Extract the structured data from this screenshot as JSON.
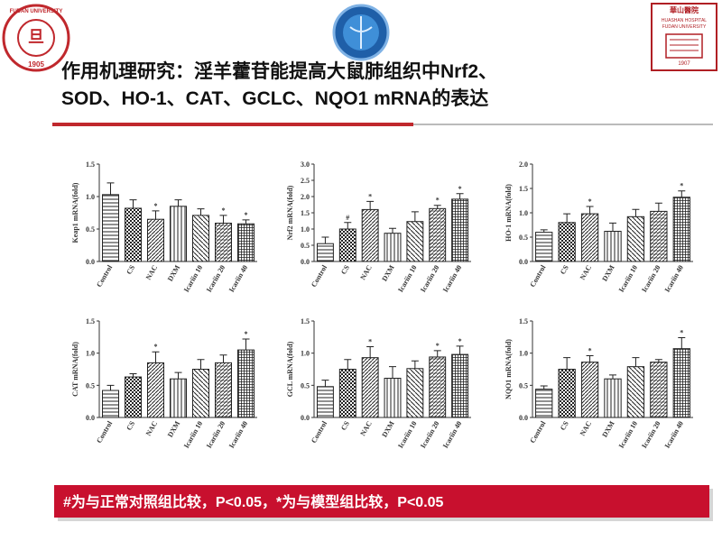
{
  "header": {
    "title_line1": "作用机理研究：淫羊藿苷能提高大鼠肺组织中Nrf2、",
    "title_line2": "SOD、HO-1、CAT、GCLC、NQO1 mRNA的表达"
  },
  "logos": {
    "left_name": "FUDAN UNIVERSITY",
    "left_year": "1905",
    "right_name_cn": "華山醫院",
    "right_name_en": "HUASHAN HOSPITAL",
    "right_univ": "FUDAN UNIVERSITY",
    "right_year": "1907"
  },
  "footnote": "#为与正常对照组比较，P<0.05，*为与模型组比较，P<0.05",
  "chart_data": [
    {
      "type": "bar",
      "y_label": "Keap1 mRNA(fold)",
      "categories": [
        "Control",
        "CS",
        "NAC",
        "DXM",
        "Icariin 10",
        "Icariin 20",
        "Icariin 40"
      ],
      "values": [
        1.03,
        0.82,
        0.65,
        0.85,
        0.71,
        0.59,
        0.58
      ],
      "errors": [
        0.18,
        0.13,
        0.13,
        0.1,
        0.1,
        0.12,
        0.06
      ],
      "significance": [
        null,
        null,
        "*",
        null,
        null,
        "*",
        "*"
      ],
      "ylim": [
        0,
        1.5
      ],
      "yticks": [
        {
          "value": 0,
          "label": "0.0"
        },
        0.5,
        {
          "value": 1,
          "label": "1.0"
        },
        1.5
      ]
    },
    {
      "type": "bar",
      "y_label": "Nrf2 mRNA(fold)",
      "categories": [
        "Control",
        "CS",
        "NAC",
        "DXM",
        "Icariin 10",
        "Icariin 20",
        "Icariin 40"
      ],
      "values": [
        0.55,
        1.0,
        1.6,
        0.87,
        1.23,
        1.63,
        1.92
      ],
      "errors": [
        0.2,
        0.2,
        0.25,
        0.15,
        0.3,
        0.1,
        0.17
      ],
      "significance": [
        null,
        "#",
        "*",
        null,
        null,
        "*",
        "*"
      ],
      "ylim": [
        0,
        3
      ],
      "yticks": [
        {
          "value": 0,
          "label": "0.0"
        },
        0.5,
        {
          "value": 1,
          "label": "1.0"
        },
        1.5,
        {
          "value": 2,
          "label": "2.0"
        },
        2.5,
        {
          "value": 3,
          "label": "3.0"
        }
      ]
    },
    {
      "type": "bar",
      "y_label": "HO-1 mRNA(fold)",
      "categories": [
        "Control",
        "CS",
        "NAC",
        "DXM",
        "Icariin 10",
        "Icariin 20",
        "Icariin 40"
      ],
      "values": [
        0.6,
        0.8,
        0.98,
        0.62,
        0.92,
        1.03,
        1.32
      ],
      "errors": [
        0.05,
        0.18,
        0.15,
        0.17,
        0.15,
        0.17,
        0.13
      ],
      "significance": [
        null,
        null,
        "*",
        null,
        null,
        null,
        "*"
      ],
      "ylim": [
        0,
        2
      ],
      "yticks": [
        {
          "value": 0,
          "label": "0.0"
        },
        0.5,
        {
          "value": 1,
          "label": "1.0"
        },
        1.5,
        {
          "value": 2,
          "label": "2.0"
        }
      ]
    },
    {
      "type": "bar",
      "y_label": "CAT mRNA(fold)",
      "categories": [
        "Control",
        "CS",
        "NAC",
        "DXM",
        "Icariin 10",
        "Icariin 20",
        "Icariin 40"
      ],
      "values": [
        0.42,
        0.63,
        0.85,
        0.6,
        0.75,
        0.85,
        1.05
      ],
      "errors": [
        0.08,
        0.05,
        0.17,
        0.1,
        0.15,
        0.12,
        0.17
      ],
      "significance": [
        null,
        null,
        "*",
        null,
        null,
        null,
        "*"
      ],
      "ylim": [
        0,
        1.5
      ],
      "yticks": [
        {
          "value": 0,
          "label": "0.0"
        },
        0.5,
        {
          "value": 1,
          "label": "1.0"
        },
        1.5
      ]
    },
    {
      "type": "bar",
      "y_label": "GCL mRNA(fold)",
      "categories": [
        "Control",
        "CS",
        "NAC",
        "DXM",
        "Icariin 10",
        "Icariin 20",
        "Icariin 40"
      ],
      "values": [
        0.48,
        0.75,
        0.93,
        0.61,
        0.76,
        0.94,
        0.98
      ],
      "errors": [
        0.1,
        0.15,
        0.17,
        0.18,
        0.12,
        0.1,
        0.13
      ],
      "significance": [
        null,
        null,
        "*",
        null,
        null,
        "*",
        "*"
      ],
      "ylim": [
        0,
        1.5
      ],
      "yticks": [
        {
          "value": 0,
          "label": "0.0"
        },
        0.5,
        {
          "value": 1,
          "label": "1.0"
        },
        1.5
      ]
    },
    {
      "type": "bar",
      "y_label": "NQO1 mRNA(fold)",
      "categories": [
        "Control",
        "CS",
        "NAC",
        "DXM",
        "Icariin 10",
        "Icariin 20",
        "Icariin 40"
      ],
      "values": [
        0.44,
        0.75,
        0.86,
        0.6,
        0.79,
        0.86,
        1.07
      ],
      "errors": [
        0.05,
        0.18,
        0.1,
        0.06,
        0.14,
        0.04,
        0.17
      ],
      "significance": [
        null,
        null,
        "*",
        null,
        null,
        null,
        "*"
      ],
      "ylim": [
        0,
        1.5
      ],
      "yticks": [
        {
          "value": 0,
          "label": "0.0"
        },
        0.5,
        {
          "value": 1,
          "label": "1.0"
        },
        1.5
      ]
    }
  ]
}
